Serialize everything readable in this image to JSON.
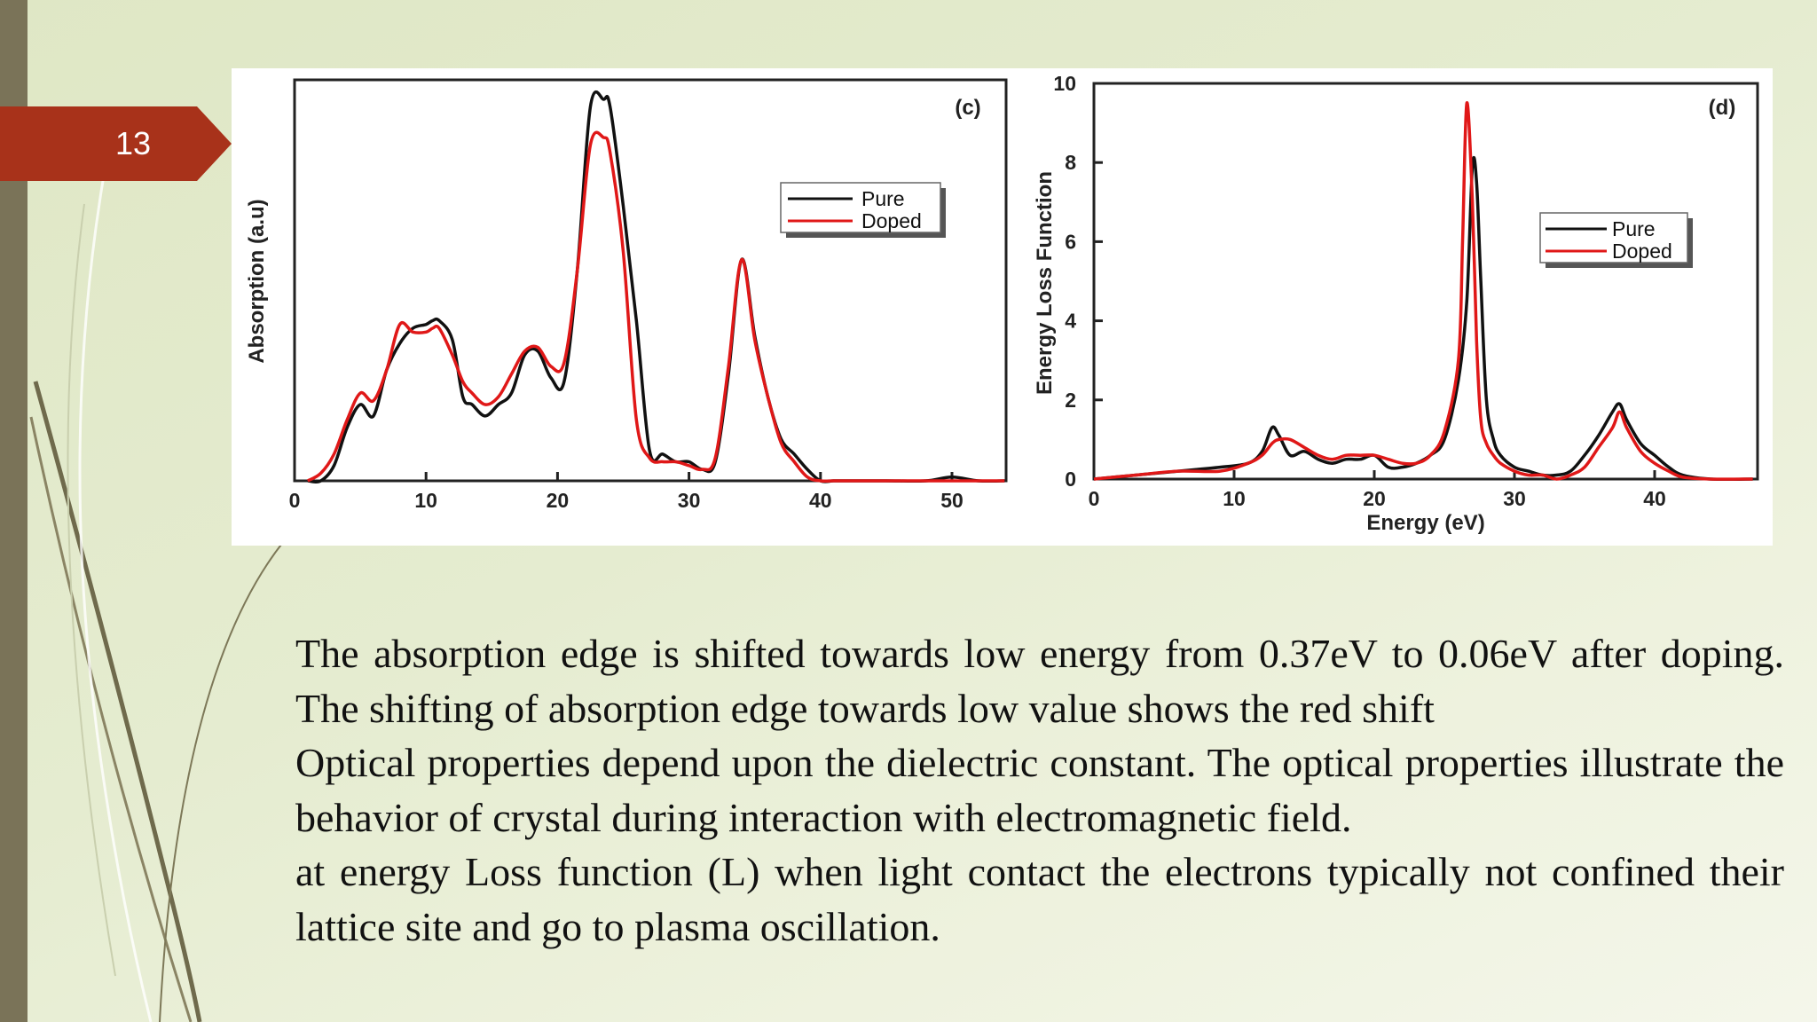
{
  "slide": {
    "number": "13"
  },
  "colors": {
    "pure": "#111111",
    "doped": "#e01818",
    "badge": "#a8321a",
    "sidebar": "#7a7358"
  },
  "chart_data": [
    {
      "type": "line",
      "panel_label": "(c)",
      "title": "",
      "xlabel": "",
      "ylabel": "Absorption (a.u)",
      "xlim": [
        0,
        54
      ],
      "x_ticks": [
        "0",
        "10",
        "20",
        "30",
        "40",
        "50"
      ],
      "y_ticks": [],
      "legend_position": "top-right",
      "grid": false,
      "series": [
        {
          "name": "Pure",
          "color": "#111111",
          "x": [
            1,
            2,
            3,
            4,
            5,
            6,
            7,
            8,
            9,
            10,
            10.5,
            11,
            12,
            12.8,
            13.5,
            14.5,
            15.5,
            16.5,
            17.5,
            18.5,
            19.5,
            20.5,
            21.5,
            22.5,
            23.5,
            24,
            25,
            26,
            27,
            28,
            29,
            30,
            31,
            32,
            33,
            34,
            35,
            36,
            37,
            38,
            39,
            40,
            41,
            42,
            45,
            48,
            50,
            52,
            54
          ],
          "y": [
            0,
            0,
            0.04,
            0.14,
            0.2,
            0.17,
            0.29,
            0.36,
            0.4,
            0.41,
            0.42,
            0.42,
            0.37,
            0.22,
            0.2,
            0.17,
            0.2,
            0.23,
            0.33,
            0.34,
            0.27,
            0.26,
            0.55,
            0.98,
            1.0,
            0.98,
            0.72,
            0.42,
            0.08,
            0.07,
            0.05,
            0.05,
            0.03,
            0.05,
            0.28,
            0.58,
            0.38,
            0.22,
            0.11,
            0.07,
            0.03,
            0.0,
            0.0,
            0.0,
            0.0,
            0.0,
            0.01,
            0.0,
            0.0
          ]
        },
        {
          "name": "Doped",
          "color": "#e01818",
          "x": [
            1,
            2,
            3,
            4,
            5,
            6,
            7,
            8,
            9,
            10,
            10.5,
            11,
            12,
            12.8,
            13.5,
            14.5,
            15.5,
            16.5,
            17.5,
            18.5,
            19.5,
            20.5,
            21.5,
            22.5,
            23.5,
            24,
            25,
            26,
            27,
            28,
            29,
            30,
            31,
            32,
            33,
            34,
            35,
            36,
            37,
            38,
            39,
            40,
            41,
            42,
            45,
            48,
            50,
            52,
            54
          ],
          "y": [
            0,
            0.02,
            0.07,
            0.16,
            0.23,
            0.21,
            0.29,
            0.41,
            0.39,
            0.39,
            0.4,
            0.4,
            0.33,
            0.26,
            0.23,
            0.2,
            0.22,
            0.28,
            0.34,
            0.35,
            0.3,
            0.31,
            0.55,
            0.88,
            0.9,
            0.86,
            0.6,
            0.16,
            0.06,
            0.05,
            0.05,
            0.04,
            0.03,
            0.06,
            0.3,
            0.58,
            0.37,
            0.22,
            0.1,
            0.05,
            0.01,
            0.0,
            0.0,
            0.0,
            0.0,
            0.0,
            0.0,
            0.0,
            0.0
          ]
        }
      ]
    },
    {
      "type": "line",
      "panel_label": "(d)",
      "title": "",
      "xlabel": "Energy (eV)",
      "ylabel": "Energy Loss Function",
      "xlim": [
        0,
        47
      ],
      "ylim": [
        0,
        10
      ],
      "x_ticks": [
        "0",
        "10",
        "20",
        "30",
        "40"
      ],
      "y_ticks": [
        "0",
        "2",
        "4",
        "6",
        "8",
        "10"
      ],
      "legend_position": "top-right",
      "grid": false,
      "series": [
        {
          "name": "Pure",
          "color": "#111111",
          "x": [
            0,
            3,
            6,
            9,
            11,
            12,
            12.7,
            13.2,
            14,
            15,
            16,
            17,
            18,
            19,
            20,
            21,
            22,
            23,
            24,
            25,
            26,
            26.6,
            27,
            27.3,
            27.6,
            28,
            28.5,
            29,
            30,
            31,
            32,
            33,
            34,
            35,
            36,
            37,
            37.5,
            38,
            39,
            40,
            41,
            42,
            44,
            47
          ],
          "y": [
            0,
            0.1,
            0.2,
            0.3,
            0.4,
            0.7,
            1.3,
            1.1,
            0.6,
            0.7,
            0.5,
            0.4,
            0.5,
            0.5,
            0.6,
            0.3,
            0.3,
            0.4,
            0.6,
            1.0,
            2.5,
            4.5,
            7.9,
            7.5,
            5.0,
            2.0,
            1.0,
            0.6,
            0.3,
            0.2,
            0.1,
            0.1,
            0.2,
            0.6,
            1.1,
            1.7,
            1.9,
            1.5,
            0.9,
            0.6,
            0.3,
            0.1,
            0.0,
            0.0
          ]
        },
        {
          "name": "Doped",
          "color": "#e01818",
          "x": [
            0,
            3,
            6,
            9,
            11,
            12,
            12.7,
            13.2,
            14,
            15,
            16,
            17,
            18,
            19,
            20,
            21,
            22,
            23,
            24,
            25,
            26,
            26.3,
            26.6,
            27,
            27.3,
            27.6,
            28,
            28.5,
            29,
            30,
            31,
            32,
            33,
            34,
            35,
            36,
            37,
            37.5,
            38,
            39,
            40,
            41,
            42,
            44,
            47
          ],
          "y": [
            0,
            0.1,
            0.2,
            0.2,
            0.4,
            0.6,
            0.9,
            1.0,
            1.0,
            0.8,
            0.6,
            0.5,
            0.6,
            0.6,
            0.6,
            0.5,
            0.4,
            0.4,
            0.6,
            1.2,
            3.0,
            6.0,
            9.5,
            7.0,
            3.5,
            1.5,
            0.9,
            0.6,
            0.4,
            0.2,
            0.1,
            0.1,
            0.0,
            0.1,
            0.3,
            0.8,
            1.3,
            1.7,
            1.3,
            0.7,
            0.4,
            0.2,
            0.05,
            0.0,
            0.0
          ]
        }
      ]
    }
  ],
  "paragraphs": [
    "The absorption edge is shifted towards low energy from 0.37eV to 0.06eV after doping. The shifting of absorption edge towards low value shows the red shift",
    "Optical properties depend upon the dielectric constant. The optical properties illustrate the behavior of crystal during interaction with electromagnetic field.",
    " at energy Loss function (L) when light contact the electrons typically not confined their lattice site and go to plasma oscillation."
  ]
}
